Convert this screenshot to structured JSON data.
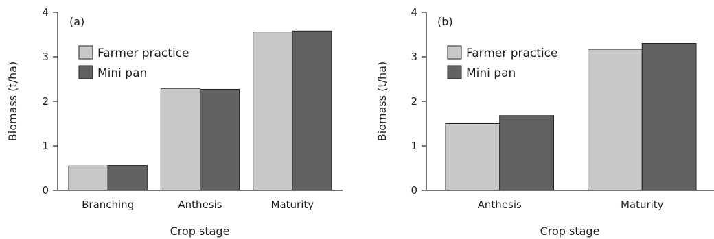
{
  "chart_data": [
    {
      "type": "bar",
      "panel_label": "(a)",
      "categories": [
        "Branching",
        "Anthesis",
        "Maturity"
      ],
      "series": [
        {
          "name": "Farmer practice",
          "color": "#c8c8ca",
          "values": [
            0.55,
            2.29,
            3.56
          ]
        },
        {
          "name": "Mini pan",
          "color": "#616163",
          "values": [
            0.56,
            2.27,
            3.58
          ]
        }
      ],
      "xlabel": "Crop stage",
      "ylabel": "Biomass (t/ha)",
      "ylim": [
        0,
        4
      ],
      "yticks": [
        "0",
        "1",
        "2",
        "3",
        "4"
      ],
      "legend_placement": "upper-left",
      "grid": false
    },
    {
      "type": "bar",
      "panel_label": "(b)",
      "categories": [
        "Anthesis",
        "Maturity"
      ],
      "series": [
        {
          "name": "Farmer practice",
          "color": "#c8c8ca",
          "values": [
            1.5,
            3.17
          ]
        },
        {
          "name": "Mini pan",
          "color": "#616163",
          "values": [
            1.68,
            3.3
          ]
        }
      ],
      "xlabel": "Crop stage",
      "ylabel": "Biomass (t/ha)",
      "ylim": [
        0,
        4
      ],
      "yticks": [
        "0",
        "1",
        "2",
        "3",
        "4"
      ],
      "legend_placement": "upper-left",
      "grid": false
    }
  ]
}
